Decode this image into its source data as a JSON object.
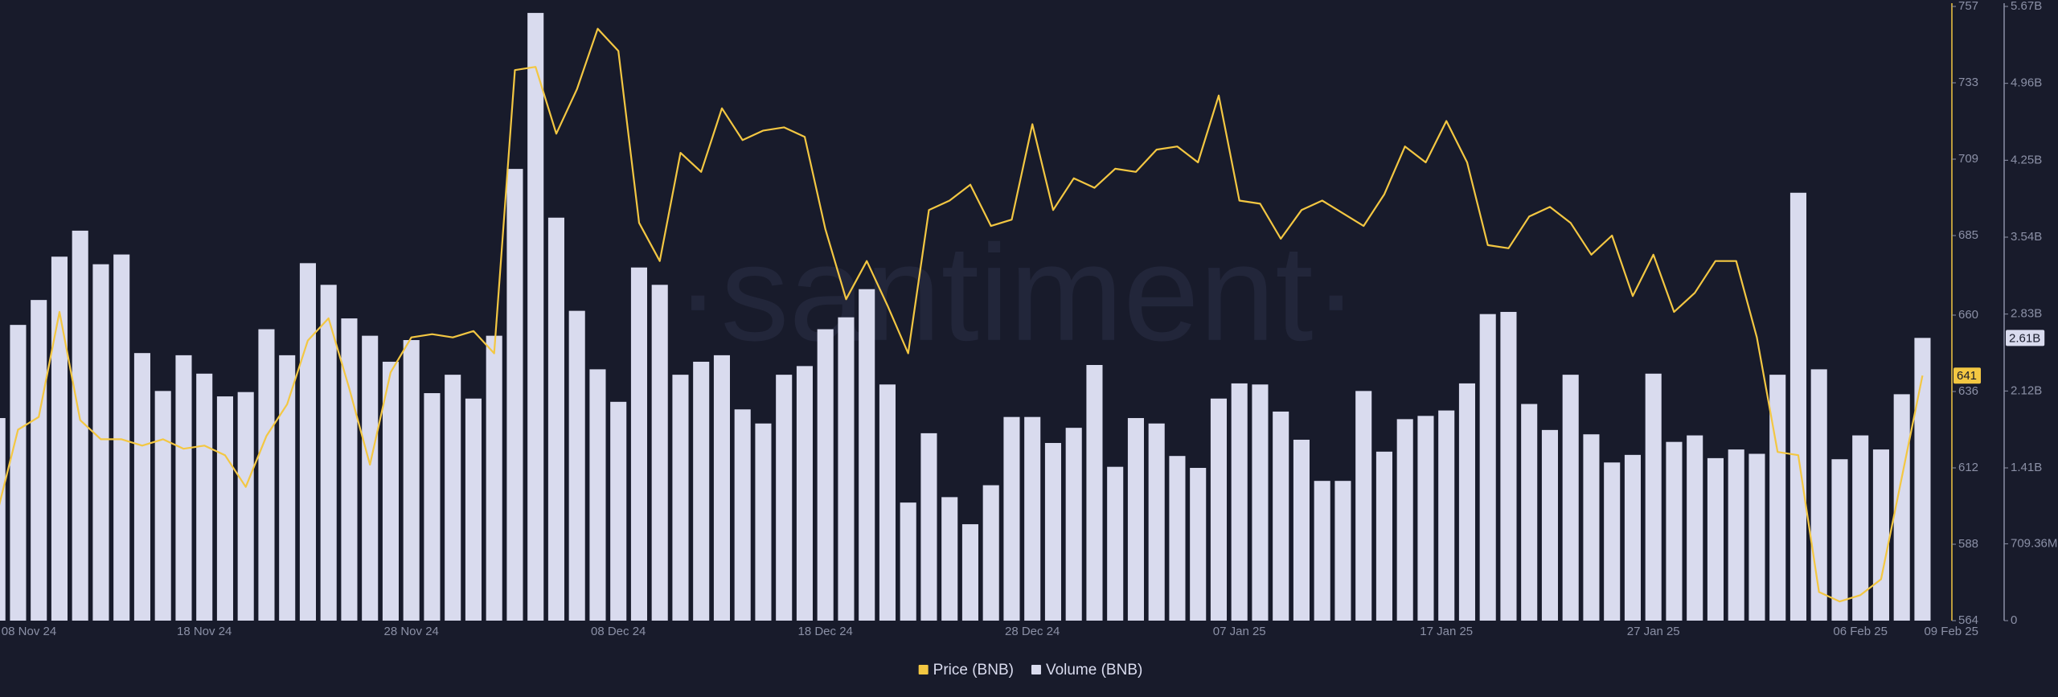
{
  "chart_data": {
    "type": "bar",
    "watermark": "·santiment·",
    "categories": [
      "08 Nov 24",
      null,
      null,
      null,
      null,
      null,
      null,
      null,
      null,
      null,
      "18 Nov 24",
      null,
      null,
      null,
      null,
      null,
      null,
      null,
      null,
      null,
      "28 Nov 24",
      null,
      null,
      null,
      null,
      null,
      null,
      null,
      null,
      null,
      "08 Dec 24",
      null,
      null,
      null,
      null,
      null,
      null,
      null,
      null,
      null,
      "18 Dec 24",
      null,
      null,
      null,
      null,
      null,
      null,
      null,
      null,
      null,
      "28 Dec 24",
      null,
      null,
      null,
      null,
      null,
      null,
      null,
      null,
      null,
      "07 Jan 25",
      null,
      null,
      null,
      null,
      null,
      null,
      null,
      null,
      null,
      "17 Jan 25",
      null,
      null,
      null,
      null,
      null,
      null,
      null,
      null,
      null,
      "27 Jan 25",
      null,
      null,
      null,
      null,
      null,
      null,
      null,
      null,
      null,
      "06 Feb 25",
      null,
      null,
      "09 Feb 25"
    ],
    "series": [
      {
        "name": "Price (BNB)",
        "type": "line",
        "axis": "y2",
        "color": "#f3c742",
        "values": [
          598,
          624,
          628,
          661,
          627,
          621,
          621,
          619,
          621,
          618,
          619,
          616,
          606,
          622,
          632,
          652,
          659,
          637,
          613,
          642,
          653,
          654,
          653,
          655,
          648,
          737,
          738,
          717,
          731,
          750,
          743,
          689,
          677,
          711,
          705,
          725,
          715,
          718,
          719,
          716,
          687,
          665,
          677,
          663,
          648,
          693,
          696,
          701,
          688,
          690,
          720,
          693,
          703,
          700,
          706,
          705,
          712,
          713,
          708,
          729,
          696,
          695,
          684,
          693,
          696,
          692,
          688,
          698,
          713,
          708,
          721,
          708,
          682,
          681,
          691,
          694,
          689,
          679,
          685,
          666,
          679,
          661,
          667,
          677,
          677,
          653,
          617,
          616,
          573,
          570,
          572,
          577,
          609,
          641
        ],
        "value_labels": [
          null,
          null,
          null,
          null,
          null,
          null,
          null,
          null,
          null,
          null,
          null,
          null,
          null,
          null,
          null,
          null,
          null,
          null,
          null,
          null,
          null,
          null,
          null,
          null,
          null,
          null,
          null,
          null,
          null,
          null,
          null,
          null,
          null,
          null,
          null,
          null,
          null,
          null,
          null,
          null,
          null,
          null,
          null,
          null,
          null,
          null,
          null,
          null,
          null,
          null,
          null,
          null,
          null,
          null,
          null,
          null,
          null,
          null,
          null,
          null,
          null,
          null,
          null,
          null,
          null,
          null,
          null,
          null,
          null,
          null,
          null,
          null,
          null,
          null,
          null,
          null,
          null,
          null,
          null,
          null,
          null,
          null,
          null,
          null,
          null,
          null,
          null,
          null,
          null,
          null,
          null,
          null,
          null,
          "641"
        ]
      },
      {
        "name": "Volume (BNB)",
        "type": "bar",
        "color": "#d9dbee",
        "values": [
          1870000000,
          2730000000,
          2960000000,
          3360000000,
          3600000000,
          3290000000,
          3380000000,
          2470000000,
          2120000000,
          2450000000,
          2280000000,
          2070000000,
          2110000000,
          2690000000,
          2450000000,
          3300000000,
          3100000000,
          2790000000,
          2630000000,
          2390000000,
          2590000000,
          2100000000,
          2270000000,
          2050000000,
          2630000000,
          4170000000,
          5610000000,
          3720000000,
          2860000000,
          2320000000,
          2020000000,
          3260000000,
          3100000000,
          2270000000,
          2390000000,
          2450000000,
          1950000000,
          1820000000,
          2270000000,
          2350000000,
          2690000000,
          2800000000,
          3060000000,
          2180000000,
          1090000000,
          1730000000,
          1140000000,
          890000000,
          1250000000,
          1880000000,
          1880000000,
          1640000000,
          1780000000,
          2360000000,
          1420000000,
          1870000000,
          1820000000,
          1520000000,
          1410000000,
          2050000000,
          2190000000,
          2180000000,
          1930000000,
          1670000000,
          1290000000,
          1290000000,
          2120000000,
          1560000000,
          1860000000,
          1890000000,
          1940000000,
          2190000000,
          2830000000,
          2850000000,
          2000000000,
          1760000000,
          2270000000,
          1720000000,
          1460000000,
          1530000000,
          2280000000,
          1650000000,
          1710000000,
          1500000000,
          1580000000,
          1540000000,
          2270000000,
          3950000000,
          2320000000,
          1490000000,
          1710000000,
          1580000000,
          2090000000,
          2610000000
        ],
        "value_labels": [
          null,
          null,
          null,
          null,
          null,
          null,
          null,
          null,
          null,
          null,
          null,
          null,
          null,
          null,
          null,
          null,
          null,
          null,
          null,
          null,
          null,
          null,
          null,
          null,
          null,
          null,
          null,
          null,
          null,
          null,
          null,
          null,
          null,
          null,
          null,
          null,
          null,
          null,
          null,
          null,
          null,
          null,
          null,
          null,
          null,
          null,
          null,
          null,
          null,
          null,
          null,
          null,
          null,
          null,
          null,
          null,
          null,
          null,
          null,
          null,
          null,
          null,
          null,
          null,
          null,
          null,
          null,
          null,
          null,
          null,
          null,
          null,
          null,
          null,
          null,
          null,
          null,
          null,
          null,
          null,
          null,
          null,
          null,
          null,
          null,
          null,
          null,
          null,
          null,
          null,
          null,
          null,
          null,
          "2.61B"
        ]
      }
    ],
    "ylim": [
      0,
      5670000000
    ],
    "yticks": [
      0,
      {
        "value": 709360000,
        "label": "709.36M"
      },
      {
        "value": 1410000000,
        "label": "1.41B"
      },
      {
        "value": 2120000000,
        "label": "2.12B"
      },
      {
        "value": 2830000000,
        "label": "2.83B"
      },
      {
        "value": 3540000000,
        "label": "3.54B"
      },
      {
        "value": 4250000000,
        "label": "4.25B"
      },
      {
        "value": 4960000000,
        "label": "4.96B"
      },
      {
        "value": 5670000000,
        "label": "5.67B"
      }
    ],
    "y2lim": [
      564,
      757
    ],
    "y2ticks": [
      564,
      588,
      612,
      636,
      660,
      685,
      709,
      733,
      757
    ],
    "grid": false,
    "legend": "bottom"
  }
}
